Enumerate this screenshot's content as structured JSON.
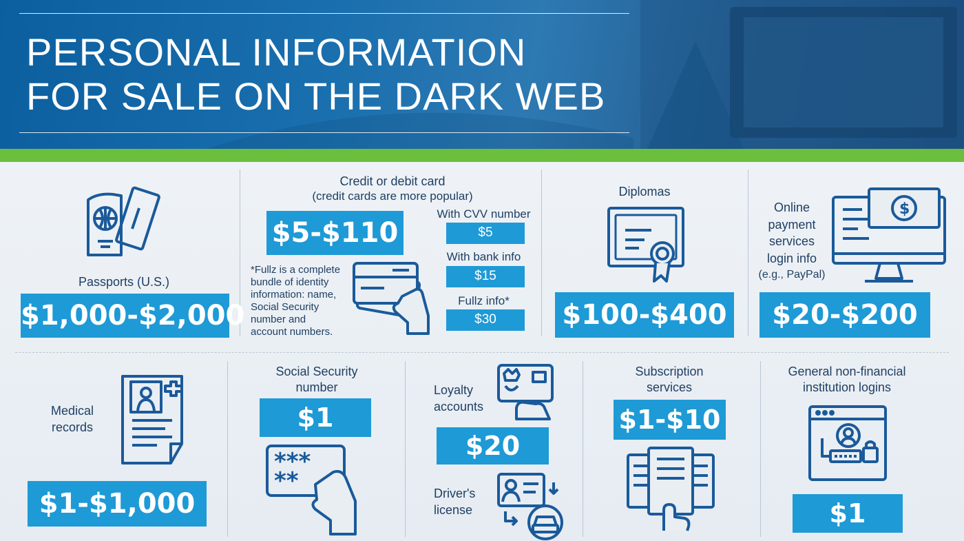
{
  "header": {
    "title_line1": "PERSONAL INFORMATION",
    "title_line2": "FOR SALE ON THE DARK WEB"
  },
  "items": {
    "passports": {
      "label": "Passports (U.S.)",
      "price": "$1,000-$2,000",
      "icon": "passport-icon"
    },
    "credit_card": {
      "label_line1": "Credit or debit card",
      "label_line2": "(credit cards are more popular)",
      "price": "$5-$110",
      "icon": "credit-card-hand-icon",
      "note_lines": [
        "*Fullz is a complete",
        "bundle of identity",
        "information: name,",
        "Social Security",
        "number and",
        "account numbers."
      ],
      "options": [
        {
          "label": "With CVV number",
          "price": "$5"
        },
        {
          "label": "With bank info",
          "price": "$15"
        },
        {
          "label": "Fullz info*",
          "price": "$30"
        }
      ]
    },
    "diplomas": {
      "label": "Diplomas",
      "price": "$100-$400",
      "icon": "diploma-icon"
    },
    "online_payment": {
      "label_lines": [
        "Online",
        "payment",
        "services",
        "login info",
        "(e.g., PayPal)"
      ],
      "price": "$20-$200",
      "icon": "monitor-dollar-icon"
    },
    "medical": {
      "label_lines": [
        "Medical",
        "records"
      ],
      "price": "$1-$1,000",
      "icon": "medical-record-icon"
    },
    "ssn": {
      "label_lines": [
        "Social Security",
        "number"
      ],
      "price": "$1",
      "icon": "ssn-card-hand-icon"
    },
    "loyalty": {
      "label_lines": [
        "Loyalty",
        "accounts"
      ],
      "price": "$20",
      "icon": "loyalty-card-icon"
    },
    "drivers": {
      "label_lines": [
        "Driver's",
        "license"
      ],
      "icon": "drivers-license-icon"
    },
    "subscription": {
      "label_lines": [
        "Subscription",
        "services"
      ],
      "price": "$1-$10",
      "icon": "subscription-menu-icon"
    },
    "general": {
      "label_lines": [
        "General non-financial",
        "institution logins"
      ],
      "price": "$1",
      "icon": "login-window-icon"
    }
  },
  "colors": {
    "accent": "#1e9ad6",
    "navy": "#1f3f63",
    "green": "#6cbf3c",
    "header": "#1a6fae"
  }
}
